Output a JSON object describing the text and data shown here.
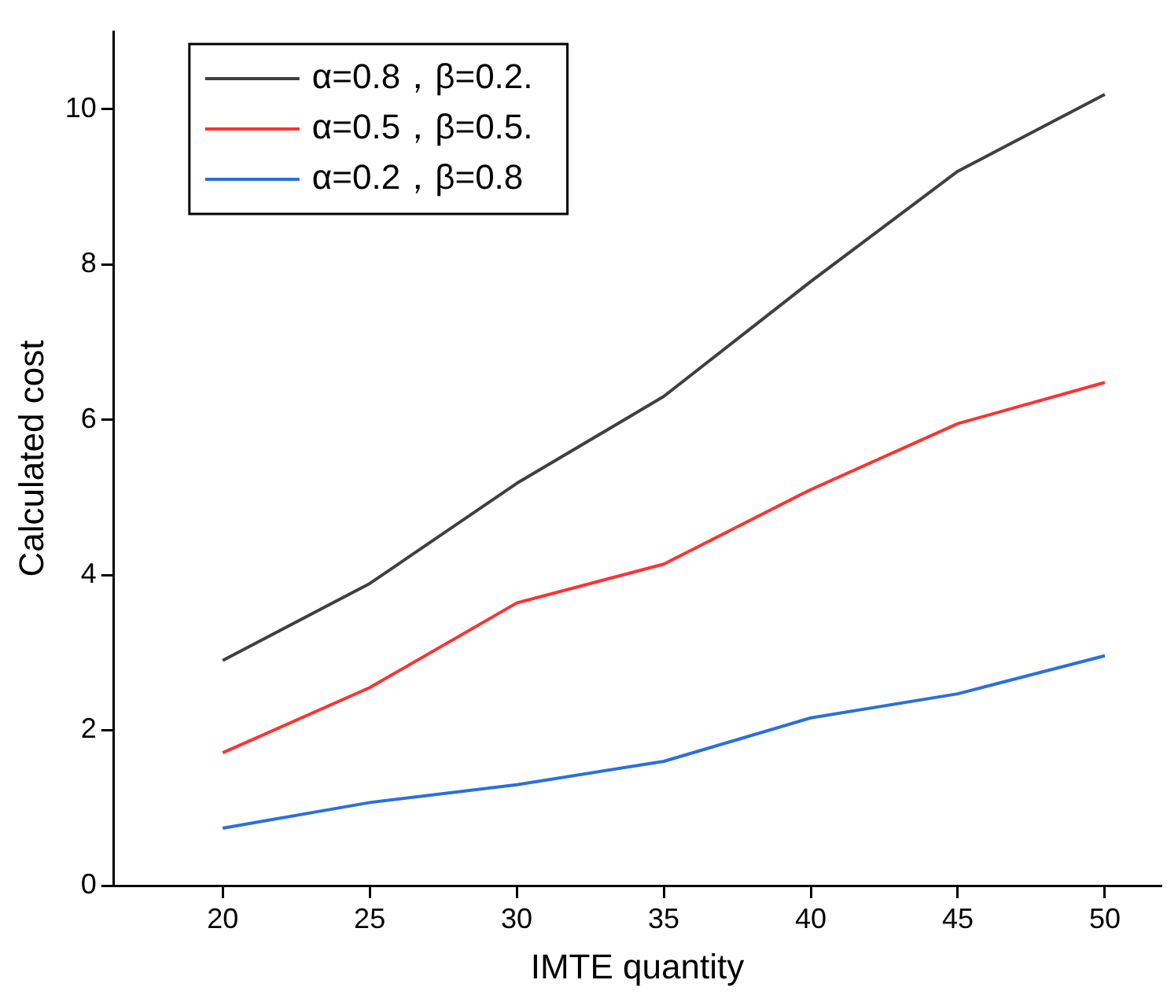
{
  "chart_data": {
    "type": "line",
    "xlabel": "IMTE quantity",
    "ylabel": "Calculated cost",
    "x": [
      20,
      25,
      30,
      35,
      40,
      45,
      50
    ],
    "series": [
      {
        "name": "α=0.8，β=0.2.",
        "color": "#404040",
        "values": [
          2.9,
          3.89,
          5.18,
          6.3,
          7.78,
          9.2,
          10.19
        ]
      },
      {
        "name": "α=0.5，β=0.5.",
        "color": "#ff3333",
        "values": [
          1.71,
          2.55,
          3.64,
          4.14,
          5.1,
          5.95,
          6.48
        ]
      },
      {
        "name": "α=0.2，β=0.8",
        "color": "#2b6fdc",
        "values": [
          0.74,
          1.07,
          1.3,
          1.6,
          2.16,
          2.47,
          2.96
        ]
      }
    ],
    "xlim": [
      16.3,
      51.9
    ],
    "xticks": [
      20,
      25,
      30,
      35,
      40,
      45,
      50
    ],
    "ylim": [
      0,
      11
    ],
    "yticks": [
      0,
      2,
      4,
      6,
      8,
      10
    ],
    "grid": false,
    "legend": "top left",
    "marker": "none",
    "line_style": "solid"
  }
}
